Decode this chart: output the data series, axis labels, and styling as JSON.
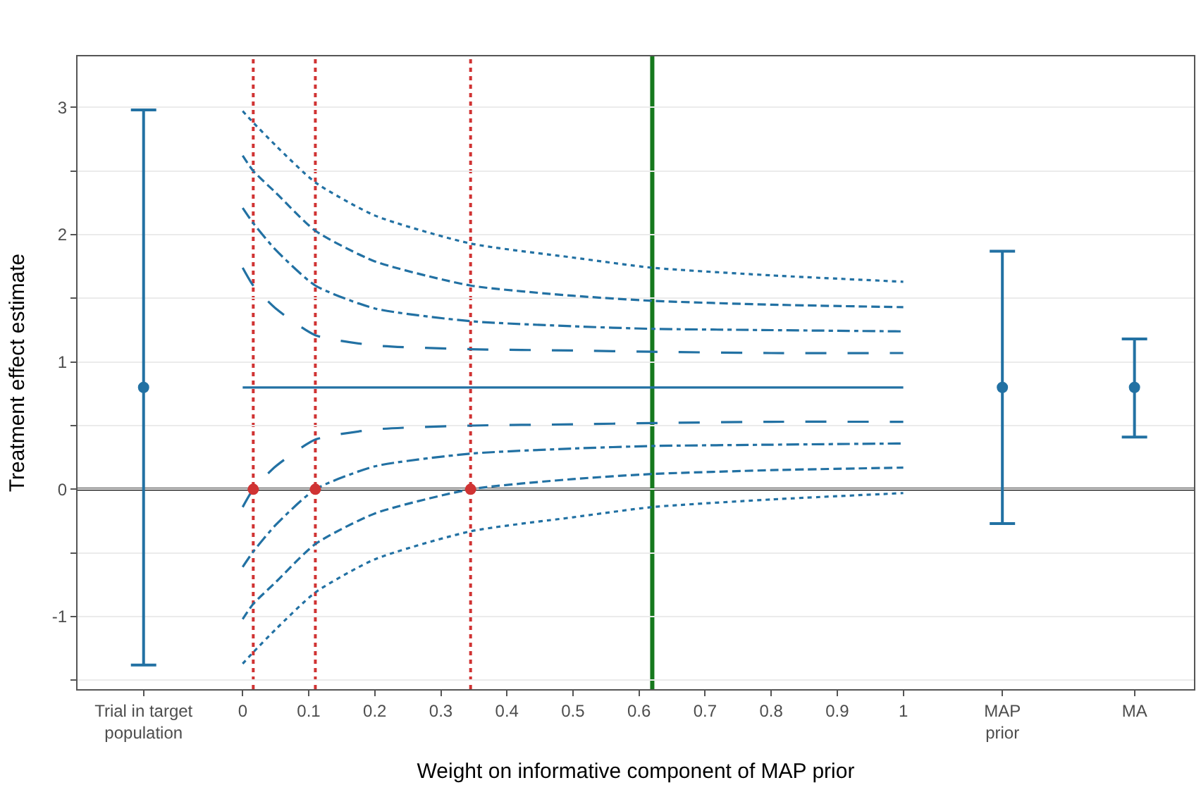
{
  "chart_data": {
    "type": "line",
    "xlabel": "Weight on informative component of MAP prior",
    "ylabel": "Treatment effect estimate",
    "xlim": [
      -0.25,
      1.44
    ],
    "ylim": [
      -1.57,
      3.4
    ],
    "xticks": [
      {
        "value": -0.15,
        "label": "Trial in target\npopulation"
      },
      0,
      0.1,
      0.2,
      0.3,
      0.4,
      0.5,
      0.6,
      0.7,
      0.8,
      0.9,
      1,
      {
        "value": 1.15,
        "label": "MAP\nprior"
      },
      {
        "value": 1.35,
        "label": "MA"
      }
    ],
    "yticks": [
      {
        "value": -1.5,
        "label": null
      },
      -1,
      {
        "value": -0.5,
        "label": null
      },
      0,
      {
        "value": 0.5,
        "label": null
      },
      1,
      {
        "value": 1.5,
        "label": null
      },
      2,
      {
        "value": 2.5,
        "label": null
      },
      3
    ],
    "grid": "y",
    "marker": "none",
    "x": [
      0,
      0.016,
      0.05,
      0.11,
      0.2,
      0.345,
      0.5,
      0.62,
      0.8,
      1
    ],
    "series": [
      {
        "color": "#2271a3",
        "line_style": "dotted",
        "values": [
          2.97,
          2.88,
          2.7,
          2.41,
          2.15,
          1.93,
          1.82,
          1.74,
          1.68,
          1.63
        ]
      },
      {
        "color": "#2271a3",
        "line_style": "dashed",
        "values": [
          2.62,
          2.5,
          2.33,
          2.03,
          1.79,
          1.6,
          1.52,
          1.48,
          1.45,
          1.43
        ]
      },
      {
        "color": "#2271a3",
        "line_style": "dashdot",
        "values": [
          2.21,
          2.09,
          1.88,
          1.6,
          1.42,
          1.32,
          1.28,
          1.26,
          1.25,
          1.24
        ]
      },
      {
        "color": "#2271a3",
        "line_style": "longdash",
        "values": [
          1.74,
          1.6,
          1.42,
          1.21,
          1.13,
          1.1,
          1.09,
          1.08,
          1.07,
          1.07
        ]
      },
      {
        "color": "#2271a3",
        "line_style": "solid",
        "values": [
          0.8,
          0.8,
          0.8,
          0.8,
          0.8,
          0.8,
          0.8,
          0.8,
          0.8,
          0.8
        ]
      },
      {
        "color": "#2271a3",
        "line_style": "longdash",
        "values": [
          -0.14,
          0.0,
          0.18,
          0.39,
          0.47,
          0.5,
          0.51,
          0.52,
          0.53,
          0.53
        ]
      },
      {
        "color": "#2271a3",
        "line_style": "dashdot",
        "values": [
          -0.61,
          -0.49,
          -0.28,
          0.0,
          0.18,
          0.28,
          0.32,
          0.34,
          0.35,
          0.36
        ]
      },
      {
        "color": "#2271a3",
        "line_style": "dashed",
        "values": [
          -1.02,
          -0.9,
          -0.73,
          -0.43,
          -0.19,
          0.0,
          0.08,
          0.12,
          0.15,
          0.17
        ]
      },
      {
        "color": "#2271a3",
        "line_style": "dotted",
        "values": [
          -1.37,
          -1.28,
          -1.1,
          -0.81,
          -0.55,
          -0.33,
          -0.22,
          -0.14,
          -0.08,
          -0.03
        ]
      },
      {
        "type": "scatter",
        "marker": "circle",
        "color": "#2271a3",
        "x": [
          -0.15,
          1.15,
          1.35
        ],
        "values": [
          0.8,
          0.8,
          0.8
        ],
        "errors": [
          [
            -1.38,
            2.98
          ],
          [
            -0.27,
            1.87
          ],
          [
            0.41,
            1.18
          ]
        ]
      },
      {
        "type": "scatter",
        "marker": "circle",
        "color": "#d03333",
        "x": [
          0.016,
          0.11,
          0.345
        ],
        "values": [
          0,
          0,
          0
        ]
      }
    ],
    "ref_lines": [
      {
        "axis": "y",
        "value": 0,
        "color": "#000000",
        "line_style": "solid"
      },
      {
        "axis": "x",
        "value": 0.016,
        "color": "#d03333",
        "line_style": "dotted"
      },
      {
        "axis": "x",
        "value": 0.11,
        "color": "#d03333",
        "line_style": "dotted"
      },
      {
        "axis": "x",
        "value": 0.345,
        "color": "#d03333",
        "line_style": "dotted"
      },
      {
        "axis": "x",
        "value": 0.62,
        "color": "#16791d",
        "line_style": "solid"
      }
    ]
  }
}
